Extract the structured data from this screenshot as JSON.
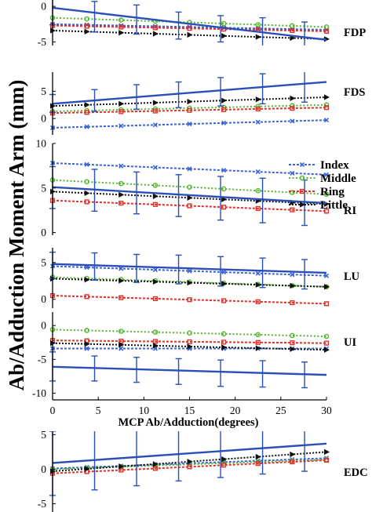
{
  "figure": {
    "ylabel": "Ab/Adduction Moment Arm (mm)",
    "xlabel": "MCP Ab/Adduction(degrees)"
  },
  "colors": {
    "Index": "#3b63d8",
    "Middle": "#52b52f",
    "Ring": "#e0302b",
    "Little": "#111111",
    "mean": "#2a4fb8"
  },
  "legend": {
    "placement": "right, beside FDS and RI panels",
    "entries": [
      {
        "name": "Index",
        "marker": "x"
      },
      {
        "name": "Middle",
        "marker": "circle"
      },
      {
        "name": "Ring",
        "marker": "square"
      },
      {
        "name": "Little",
        "marker": "triangle-right"
      }
    ]
  },
  "chart_data": [
    {
      "type": "line",
      "label": "FDP",
      "x": [
        0,
        30
      ],
      "ylim": [
        -5.5,
        0.9
      ],
      "yticks": [
        0,
        -5
      ],
      "xticks": [],
      "series": [
        {
          "name": "Index",
          "values": [
            -2.5,
            -3.3
          ]
        },
        {
          "name": "Middle",
          "values": [
            -1.6,
            -2.9
          ]
        },
        {
          "name": "Ring",
          "values": [
            -2.7,
            -3.5
          ]
        },
        {
          "name": "Little",
          "values": [
            -3.4,
            -4.6
          ]
        }
      ],
      "mean": {
        "values": [
          -0.2,
          -4.7
        ]
      },
      "errorbars": [
        {
          "x": 0,
          "y": -0.2,
          "lo": -2.6,
          "hi": 2.0
        },
        {
          "x": 4.6,
          "y": -1.3,
          "lo": -3.6,
          "hi": 0.7
        },
        {
          "x": 9.2,
          "y": -1.7,
          "lo": -3.9,
          "hi": 0.2
        },
        {
          "x": 13.8,
          "y": -2.3,
          "lo": -4.6,
          "hi": -0.8
        },
        {
          "x": 18.4,
          "y": -3.0,
          "lo": -5.0,
          "hi": -1.3
        },
        {
          "x": 23.0,
          "y": -3.5,
          "lo": -5.6,
          "hi": -1.6
        },
        {
          "x": 27.6,
          "y": -4.1,
          "lo": -5.9,
          "hi": -2.2
        }
      ]
    },
    {
      "type": "line",
      "label": "FDS",
      "x": [
        0,
        30
      ],
      "ylim": [
        -3.0,
        8.5
      ],
      "yticks": [
        5,
        0
      ],
      "xticks": [],
      "series": [
        {
          "name": "Index",
          "values": [
            -1.7,
            -0.3
          ]
        },
        {
          "name": "Middle",
          "values": [
            1.3,
            2.5
          ]
        },
        {
          "name": "Ring",
          "values": [
            1.0,
            2.0
          ]
        },
        {
          "name": "Little",
          "values": [
            2.3,
            3.9
          ]
        }
      ],
      "mean": {
        "values": [
          2.7,
          6.7
        ]
      },
      "errorbars": [
        {
          "x": 0,
          "y": 2.7,
          "lo": 1.1,
          "hi": 4.4
        },
        {
          "x": 4.6,
          "y": 3.3,
          "lo": 1.3,
          "hi": 5.3
        },
        {
          "x": 9.2,
          "y": 3.8,
          "lo": 1.7,
          "hi": 6.2
        },
        {
          "x": 13.8,
          "y": 4.4,
          "lo": 2.0,
          "hi": 6.7
        },
        {
          "x": 18.4,
          "y": 5.0,
          "lo": 2.3,
          "hi": 7.5
        },
        {
          "x": 23.0,
          "y": 5.6,
          "lo": 2.7,
          "hi": 8.2
        },
        {
          "x": 27.6,
          "y": 6.2,
          "lo": 3.0,
          "hi": 8.9
        }
      ]
    },
    {
      "type": "line",
      "label": "RI",
      "x": [
        0,
        30
      ],
      "ylim": [
        -0.3,
        10.0
      ],
      "yticks": [
        10,
        5,
        0
      ],
      "xticks": [],
      "series": [
        {
          "name": "Index",
          "values": [
            7.8,
            6.5
          ]
        },
        {
          "name": "Middle",
          "values": [
            5.9,
            4.3
          ]
        },
        {
          "name": "Ring",
          "values": [
            3.6,
            2.4
          ]
        },
        {
          "name": "Little",
          "values": [
            4.6,
            3.2
          ]
        }
      ],
      "mean": {
        "values": [
          5.1,
          3.3
        ]
      },
      "errorbars": [
        {
          "x": 0,
          "y": 5.1,
          "lo": 2.7,
          "hi": 7.4
        },
        {
          "x": 4.6,
          "y": 4.8,
          "lo": 2.4,
          "hi": 7.1
        },
        {
          "x": 9.2,
          "y": 4.6,
          "lo": 2.1,
          "hi": 6.8
        },
        {
          "x": 13.8,
          "y": 4.3,
          "lo": 1.8,
          "hi": 6.5
        },
        {
          "x": 18.4,
          "y": 4.0,
          "lo": 1.4,
          "hi": 6.3
        },
        {
          "x": 23.0,
          "y": 3.8,
          "lo": 1.1,
          "hi": 6.1
        },
        {
          "x": 27.6,
          "y": 3.5,
          "lo": 0.8,
          "hi": 5.9
        }
      ]
    },
    {
      "type": "line",
      "label": "LU",
      "x": [
        0,
        30
      ],
      "ylim": [
        -1.2,
        7.0
      ],
      "yticks": [
        5,
        0
      ],
      "xticks": [],
      "series": [
        {
          "name": "Index",
          "values": [
            4.5,
            3.2
          ]
        },
        {
          "name": "Middle",
          "values": [
            3.0,
            1.7
          ]
        },
        {
          "name": "Ring",
          "values": [
            0.5,
            -0.6
          ]
        },
        {
          "name": "Little",
          "values": [
            2.8,
            1.7
          ]
        }
      ],
      "mean": {
        "values": [
          4.8,
          3.6
        ]
      },
      "errorbars": [
        {
          "x": 0,
          "y": 4.8,
          "lo": 2.8,
          "hi": 6.4
        },
        {
          "x": 4.6,
          "y": 4.6,
          "lo": 2.6,
          "hi": 6.3
        },
        {
          "x": 9.2,
          "y": 4.4,
          "lo": 2.3,
          "hi": 6.1
        },
        {
          "x": 13.8,
          "y": 4.2,
          "lo": 2.1,
          "hi": 6.0
        },
        {
          "x": 18.4,
          "y": 4.0,
          "lo": 1.8,
          "hi": 5.8
        },
        {
          "x": 23.0,
          "y": 3.8,
          "lo": 1.6,
          "hi": 5.6
        },
        {
          "x": 27.6,
          "y": 3.6,
          "lo": 1.4,
          "hi": 5.4
        }
      ]
    },
    {
      "type": "line",
      "label": "UI",
      "x": [
        0,
        30
      ],
      "ylim": [
        -11.0,
        2.0
      ],
      "yticks": [
        0,
        -5,
        -10
      ],
      "xticks": [
        0,
        5,
        10,
        15,
        20,
        25,
        30
      ],
      "series": [
        {
          "name": "Index",
          "values": [
            -3.4,
            -3.4
          ]
        },
        {
          "name": "Middle",
          "values": [
            -0.6,
            -1.6
          ]
        },
        {
          "name": "Ring",
          "values": [
            -2.2,
            -2.6
          ]
        },
        {
          "name": "Little",
          "values": [
            -2.6,
            -3.6
          ]
        }
      ],
      "mean": {
        "values": [
          -6.1,
          -7.3
        ]
      },
      "errorbars": [
        {
          "x": 0,
          "y": -6.1,
          "lo": -8.2,
          "hi": -3.9
        },
        {
          "x": 4.6,
          "y": -6.3,
          "lo": -8.2,
          "hi": -4.5
        },
        {
          "x": 9.2,
          "y": -6.5,
          "lo": -8.4,
          "hi": -4.7
        },
        {
          "x": 13.8,
          "y": -6.7,
          "lo": -8.7,
          "hi": -4.9
        },
        {
          "x": 18.4,
          "y": -6.9,
          "lo": -9.0,
          "hi": -5.1
        },
        {
          "x": 23.0,
          "y": -7.1,
          "lo": -9.1,
          "hi": -5.2
        },
        {
          "x": 27.6,
          "y": -7.2,
          "lo": -9.2,
          "hi": -5.4
        }
      ]
    },
    {
      "type": "line",
      "label": "EDC",
      "x": [
        0,
        30
      ],
      "ylim": [
        -6.2,
        5.5
      ],
      "yticks": [
        5,
        0,
        -5
      ],
      "xticks": [],
      "series": [
        {
          "name": "Index",
          "values": [
            0.1,
            1.6
          ]
        },
        {
          "name": "Middle",
          "values": [
            0.0,
            1.4
          ]
        },
        {
          "name": "Ring",
          "values": [
            -0.6,
            1.3
          ]
        },
        {
          "name": "Little",
          "values": [
            -0.3,
            2.5
          ]
        }
      ],
      "mean": {
        "values": [
          0.9,
          3.7
        ]
      },
      "errorbars": [
        {
          "x": 0,
          "y": 0.9,
          "lo": -3.8,
          "hi": 5.5
        },
        {
          "x": 4.6,
          "y": 1.5,
          "lo": -3.0,
          "hi": 6.0
        },
        {
          "x": 9.2,
          "y": 2.0,
          "lo": -2.4,
          "hi": 6.2
        },
        {
          "x": 13.8,
          "y": 2.5,
          "lo": -1.7,
          "hi": 6.5
        },
        {
          "x": 18.4,
          "y": 3.0,
          "lo": -1.2,
          "hi": 6.8
        },
        {
          "x": 23.0,
          "y": 3.4,
          "lo": -0.7,
          "hi": 7.0
        },
        {
          "x": 27.6,
          "y": 3.7,
          "lo": -0.3,
          "hi": 7.2
        }
      ]
    }
  ]
}
